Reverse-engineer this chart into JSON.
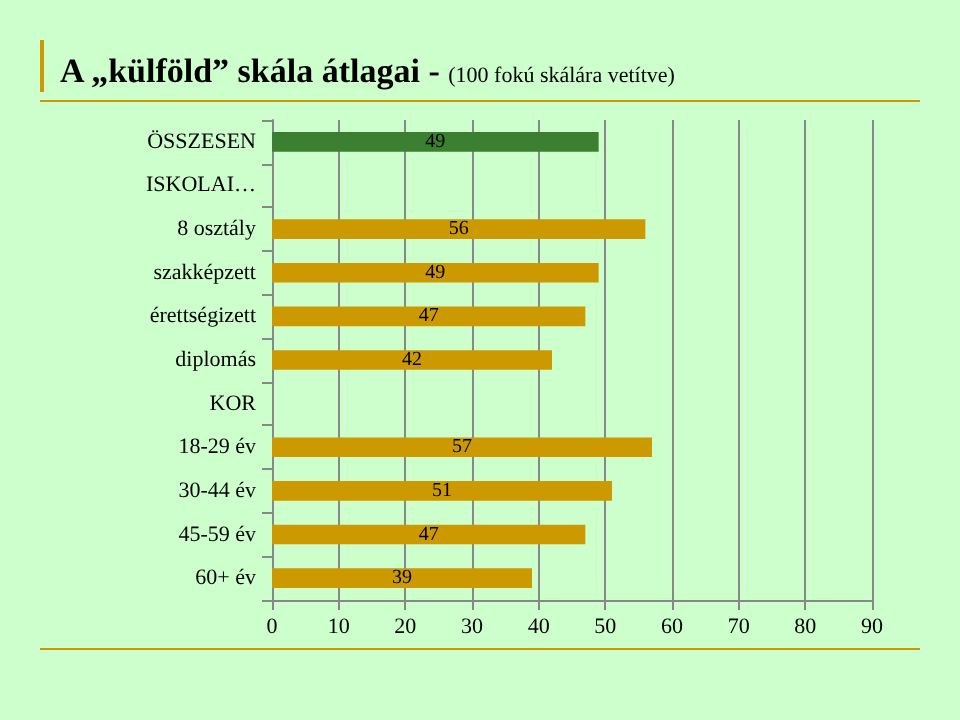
{
  "chart_data": {
    "type": "bar",
    "orientation": "horizontal",
    "title": "A „külföld” skála átlagai -",
    "subtitle": "(100 fokú skálára vetítve)",
    "categories": [
      "ÖSSZESEN",
      "ISKOLAI…",
      "8 osztály",
      "szakképzett",
      "érettségizett",
      "diplomás",
      "KOR",
      "18-29 év",
      "30-44 év",
      "45-59 év",
      "60+ év"
    ],
    "values": [
      49,
      null,
      56,
      49,
      47,
      42,
      null,
      57,
      51,
      47,
      39
    ],
    "colors": [
      "#3a8030",
      "#cc9900",
      "#cc9900",
      "#cc9900",
      "#cc9900",
      "#cc9900",
      "#cc9900",
      "#cc9900",
      "#cc9900",
      "#cc9900",
      "#cc9900"
    ],
    "xlim": [
      0,
      90
    ],
    "xticks": [
      0,
      10,
      20,
      30,
      40,
      50,
      60,
      70,
      80,
      90
    ],
    "grid": "x",
    "data_labels": true
  }
}
